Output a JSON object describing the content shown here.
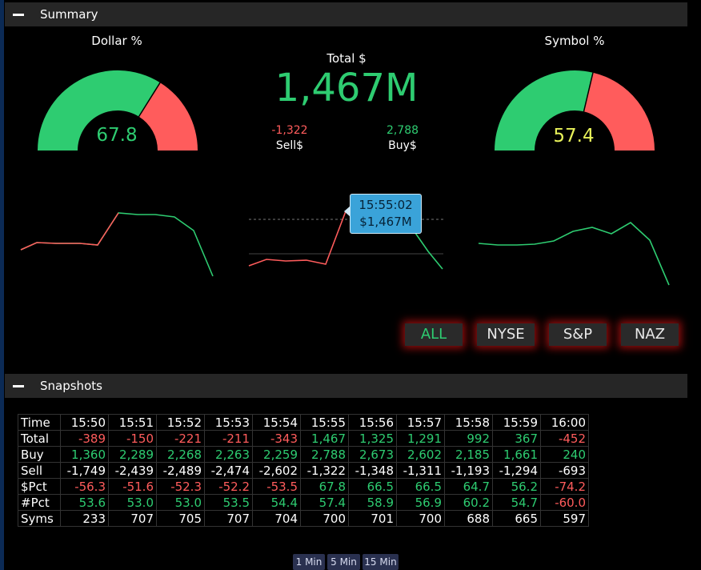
{
  "summary": {
    "title": "Summary",
    "dollar_gauge": {
      "title": "Dollar %",
      "value": "67.8",
      "pct": 67.8
    },
    "symbol_gauge": {
      "title": "Symbol %",
      "value": "57.4",
      "pct": 57.4
    },
    "total_label": "Total $",
    "total_value": "1,467M",
    "sell_value": "-1,322",
    "sell_label": "Sell$",
    "buy_value": "2,788",
    "buy_label": "Buy$",
    "tooltip": {
      "time": "15:55:02",
      "value": "$1,467M"
    }
  },
  "markets": [
    {
      "label": "ALL",
      "active": true
    },
    {
      "label": "NYSE",
      "active": false
    },
    {
      "label": "S&P",
      "active": false
    },
    {
      "label": "NAZ",
      "active": false
    }
  ],
  "snapshots": {
    "title": "Snapshots",
    "header": [
      "Time",
      "15:50",
      "15:51",
      "15:52",
      "15:53",
      "15:54",
      "15:55",
      "15:56",
      "15:57",
      "15:58",
      "15:59",
      "16:00"
    ],
    "rows": [
      {
        "label": "Total",
        "cells": [
          "-389",
          "-150",
          "-221",
          "-211",
          "-343",
          "1,467",
          "1,325",
          "1,291",
          "992",
          "367",
          "-452"
        ]
      },
      {
        "label": "Buy",
        "cells": [
          "1,360",
          "2,289",
          "2,268",
          "2,263",
          "2,259",
          "2,788",
          "2,673",
          "2,602",
          "2,185",
          "1,661",
          "240"
        ]
      },
      {
        "label": "Sell",
        "cells": [
          "-1,749",
          "-2,439",
          "-2,489",
          "-2,474",
          "-2,602",
          "-1,322",
          "-1,348",
          "-1,311",
          "-1,193",
          "-1,294",
          "-693"
        ]
      },
      {
        "label": "$Pct",
        "cells": [
          "-56.3",
          "-51.6",
          "-52.3",
          "-52.2",
          "-53.5",
          "67.8",
          "66.5",
          "66.5",
          "64.7",
          "56.2",
          "-74.2"
        ]
      },
      {
        "label": "#Pct",
        "cells": [
          "53.6",
          "53.0",
          "53.0",
          "53.5",
          "54.4",
          "57.4",
          "58.9",
          "56.9",
          "60.2",
          "54.7",
          "-60.0"
        ]
      },
      {
        "label": "Syms",
        "cells": [
          "233",
          "707",
          "705",
          "707",
          "704",
          "700",
          "701",
          "700",
          "688",
          "665",
          "597"
        ]
      }
    ]
  },
  "intervals": [
    "1 Min",
    "5 Min",
    "15 Min"
  ],
  "colors": {
    "positive": "#2ecc71",
    "negative": "#ff5c5c",
    "symbol_value": "#e8f25a"
  }
}
